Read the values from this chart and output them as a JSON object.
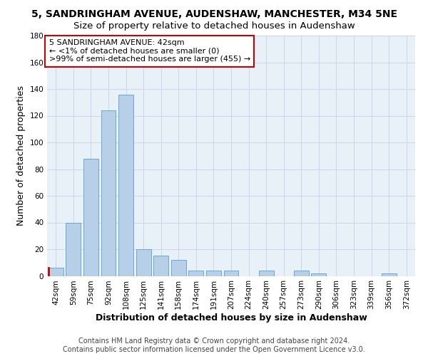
{
  "title": "5, SANDRINGHAM AVENUE, AUDENSHAW, MANCHESTER, M34 5NE",
  "subtitle": "Size of property relative to detached houses in Audenshaw",
  "xlabel": "Distribution of detached houses by size in Audenshaw",
  "ylabel": "Number of detached properties",
  "categories": [
    "42sqm",
    "59sqm",
    "75sqm",
    "92sqm",
    "108sqm",
    "125sqm",
    "141sqm",
    "158sqm",
    "174sqm",
    "191sqm",
    "207sqm",
    "224sqm",
    "240sqm",
    "257sqm",
    "273sqm",
    "290sqm",
    "306sqm",
    "323sqm",
    "339sqm",
    "356sqm",
    "372sqm"
  ],
  "values": [
    6,
    40,
    88,
    124,
    136,
    20,
    15,
    12,
    4,
    4,
    4,
    0,
    4,
    0,
    4,
    2,
    0,
    0,
    0,
    2,
    0
  ],
  "bar_color": "#b8cfe8",
  "bar_edge_color": "#5a9fd4",
  "highlight_bar_index": 0,
  "highlight_line_color": "#cc0000",
  "ylim": [
    0,
    180
  ],
  "yticks": [
    0,
    20,
    40,
    60,
    80,
    100,
    120,
    140,
    160,
    180
  ],
  "annotation_line1": "5 SANDRINGHAM AVENUE: 42sqm",
  "annotation_line2": "← <1% of detached houses are smaller (0)",
  "annotation_line3": ">99% of semi-detached houses are larger (455) →",
  "annotation_box_color": "#ffffff",
  "annotation_box_edge_color": "#cc0000",
  "grid_color": "#c8d8e8",
  "background_color": "#e8f0f8",
  "footer_line1": "Contains HM Land Registry data © Crown copyright and database right 2024.",
  "footer_line2": "Contains public sector information licensed under the Open Government Licence v3.0.",
  "title_fontsize": 10,
  "subtitle_fontsize": 9.5,
  "axis_label_fontsize": 9,
  "tick_fontsize": 7.5,
  "annotation_fontsize": 8,
  "footer_fontsize": 7
}
